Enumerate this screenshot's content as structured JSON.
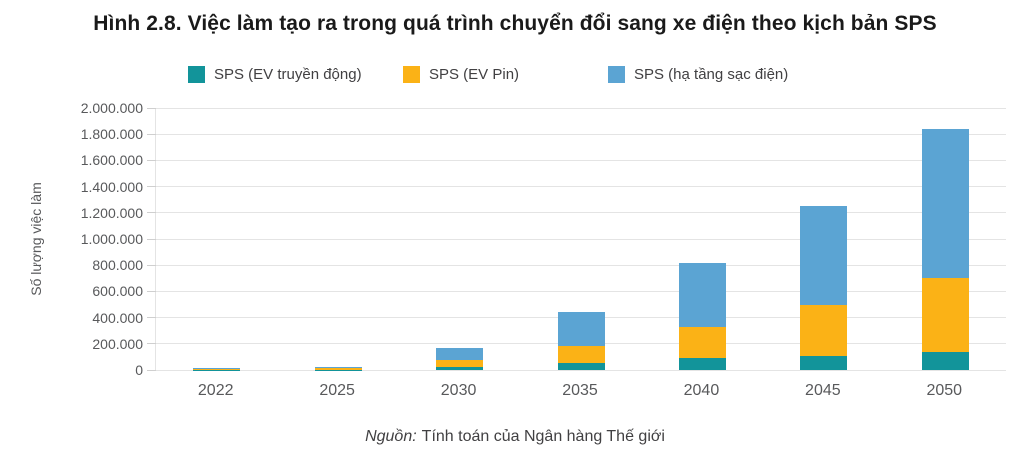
{
  "title": "Hình 2.8. Việc làm tạo ra trong quá trình chuyển đổi sang xe điện theo kịch bản SPS",
  "source": {
    "prefix": "Nguồn:",
    "text": "Tính toán của Ngân hàng Thế giới"
  },
  "chart_data": {
    "type": "bar",
    "stacked": true,
    "title": "Hình 2.8. Việc làm tạo ra trong quá trình chuyển đổi sang xe điện theo kịch bản SPS",
    "categories": [
      "2022",
      "2025",
      "2030",
      "2035",
      "2040",
      "2045",
      "2050"
    ],
    "series": [
      {
        "name": "SPS (EV truyền động)",
        "color": "#12949A",
        "values": [
          1000,
          2000,
          25000,
          50000,
          90000,
          110000,
          135000
        ]
      },
      {
        "name": "SPS (EV Pin)",
        "color": "#FBB216",
        "values": [
          3000,
          10000,
          55000,
          135000,
          235000,
          385000,
          570000
        ]
      },
      {
        "name": "SPS (hạ tầng sạc điện)",
        "color": "#5BA4D3",
        "values": [
          10000,
          12000,
          90000,
          255000,
          495000,
          755000,
          1135000
        ]
      }
    ],
    "totals": [
      14000,
      24000,
      170000,
      440000,
      820000,
      1250000,
      1840000
    ],
    "xlabel": "",
    "ylabel": "Số lượng việc làm",
    "ylim": [
      0,
      2000000
    ],
    "ytick_step": 200000,
    "ytick_labels": [
      "0",
      "200.000",
      "400.000",
      "600.000",
      "800.000",
      "1.000.000",
      "1.200.000",
      "1.400.000",
      "1.600.000",
      "1.800.000",
      "2.000.000"
    ],
    "grid": true,
    "legend_position": "top",
    "gridline_color": "#e4e4e4"
  }
}
